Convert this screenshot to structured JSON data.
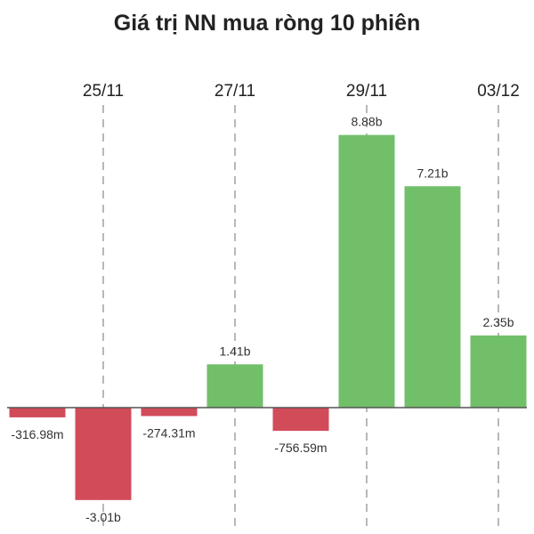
{
  "chart_data": {
    "type": "bar",
    "title": "Giá trị NN mua ròng 10 phiên",
    "xlabel": "",
    "ylabel": "",
    "grid": "vertical dashed lines at labeled dates",
    "legend": "none",
    "ylim": [
      -3.5,
      10.5
    ],
    "x_tick_labels": [
      {
        "label": "25/11",
        "category_index": 1
      },
      {
        "label": "27/11",
        "category_index": 3
      },
      {
        "label": "29/11",
        "category_index": 5
      },
      {
        "label": "03/12",
        "category_index": 7
      }
    ],
    "values_billion": [
      -0.31698,
      -3.01,
      -0.27431,
      1.41,
      -0.75659,
      8.88,
      7.21,
      2.35
    ],
    "data_labels": [
      "-316.98m",
      "-3.01b",
      "-274.31m",
      "1.41b",
      "-756.59m",
      "8.88b",
      "7.21b",
      "2.35b"
    ],
    "colors": {
      "positive": "#72bf6a",
      "negative": "#d24b59",
      "axis": "#555555",
      "grid": "#888888"
    }
  }
}
